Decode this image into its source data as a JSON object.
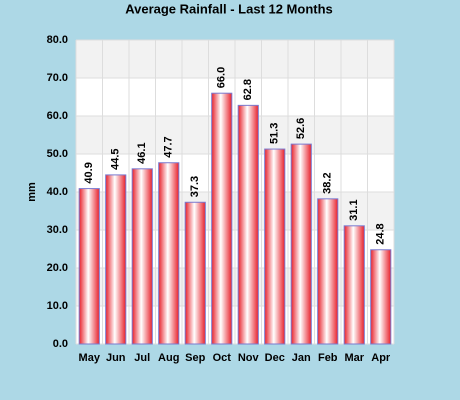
{
  "chart_data": {
    "type": "bar",
    "title": "Average Rainfall - Last 12 Months",
    "y_label": "mm",
    "categories": [
      "May",
      "Jun",
      "Jul",
      "Aug",
      "Sep",
      "Oct",
      "Nov",
      "Dec",
      "Jan",
      "Feb",
      "Mar",
      "Apr"
    ],
    "values": [
      40.9,
      44.5,
      46.1,
      47.7,
      37.3,
      66.0,
      62.8,
      51.3,
      52.6,
      38.2,
      31.1,
      24.8
    ],
    "value_labels": [
      "40.9",
      "44.5",
      "46.1",
      "47.7",
      "37.3",
      "66.0",
      "62.8",
      "51.3",
      "52.6",
      "38.2",
      "31.1",
      "24.8"
    ],
    "color": "#e8202a",
    "ylim": [
      0,
      80
    ],
    "yticks": [
      {
        "value": 0,
        "label": "0.0"
      },
      {
        "value": 10,
        "label": "10.0"
      },
      {
        "value": 20,
        "label": "20.0"
      },
      {
        "value": 30,
        "label": "30.0"
      },
      {
        "value": 40,
        "label": "40.0"
      },
      {
        "value": 50,
        "label": "50.0"
      },
      {
        "value": 60,
        "label": "60.0"
      },
      {
        "value": 70,
        "label": "70.0"
      },
      {
        "value": 80,
        "label": "80.0"
      }
    ],
    "grid": true
  }
}
